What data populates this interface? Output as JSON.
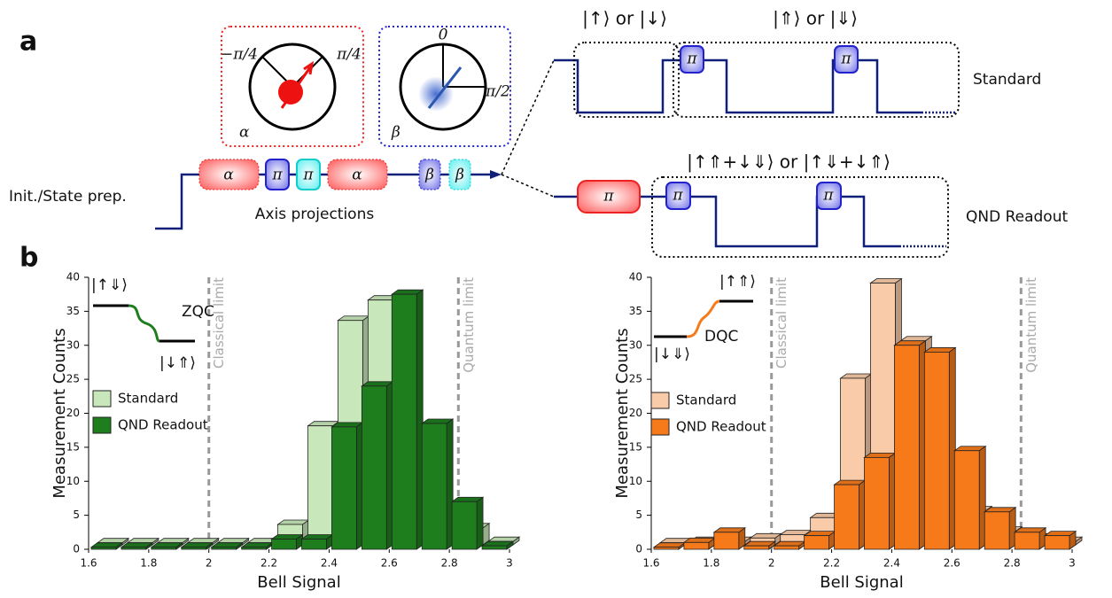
{
  "diagram": {
    "panel_a": "a",
    "panel_b": "b",
    "init": "Init./State prep.",
    "axis_projections": "Axis projections",
    "pulses": [
      "α",
      "π",
      "π",
      "α",
      "β",
      "β"
    ],
    "alpha_inset": {
      "left": "−π/4",
      "right": "π/4",
      "name": "α"
    },
    "beta_inset": {
      "top": "0",
      "right": "π/2",
      "name": "β"
    },
    "standard": {
      "label": "Standard",
      "state1": "|↑⟩ or |↓⟩",
      "state2": "|⇑⟩ or |⇓⟩",
      "pulses": [
        "π",
        "π"
      ]
    },
    "qnd": {
      "label": "QND Readout",
      "state": "|↑⇑+↓⇓⟩ or |↑⇓+↓⇑⟩",
      "pulses": [
        "π",
        "π",
        "π"
      ]
    }
  },
  "chart_data": [
    {
      "type": "histogram",
      "xlabel": "Bell Signal",
      "ylabel": "Measurement Counts",
      "bins": [
        1.6,
        1.7,
        1.8,
        1.9,
        2.0,
        2.1,
        2.2,
        2.3,
        2.4,
        2.5,
        2.6,
        2.7,
        2.8,
        2.9,
        3.0
      ],
      "series": [
        {
          "name": "Standard",
          "color": "#c8e8bb",
          "values": [
            0.3,
            0.3,
            0.3,
            0.3,
            0.3,
            0.3,
            3,
            17.5,
            33,
            36,
            16,
            5,
            2.5,
            0.5
          ]
        },
        {
          "name": "QND Readout",
          "color": "#1e7e1e",
          "values": [
            0.3,
            0.3,
            0.3,
            0.3,
            0.3,
            0.3,
            1.5,
            1.5,
            18,
            24,
            37.5,
            18.5,
            7,
            0.5
          ]
        }
      ],
      "xlim": [
        1.6,
        3
      ],
      "xticks": [
        1.6,
        1.8,
        2,
        2.2,
        2.4,
        2.6,
        2.8,
        3
      ],
      "ylim": [
        0,
        40
      ],
      "yticks": [
        0,
        5,
        10,
        15,
        20,
        25,
        30,
        35,
        40
      ],
      "vlines": [
        {
          "value": 2,
          "label": "Classical limit"
        },
        {
          "value": 2.83,
          "label": "Quantum limit"
        }
      ],
      "annotations": [
        "|↑⇓⟩",
        "ZQC",
        "|↓⇑⟩"
      ]
    },
    {
      "type": "histogram",
      "xlabel": "Bell Signal",
      "ylabel": "Measurement Counts",
      "bins": [
        1.6,
        1.7,
        1.8,
        1.9,
        2.0,
        2.1,
        2.2,
        2.3,
        2.4,
        2.5,
        2.6,
        2.7,
        2.8,
        2.9,
        3.0
      ],
      "series": [
        {
          "name": "Standard",
          "color": "#f9cba8",
          "values": [
            0.3,
            0.5,
            0.5,
            1,
            1.5,
            4,
            24.5,
            38.5,
            30,
            10,
            5,
            2,
            1,
            0.5
          ]
        },
        {
          "name": "QND Readout",
          "color": "#f77a1a",
          "values": [
            0.3,
            1,
            2.5,
            0.5,
            0.5,
            2,
            9.5,
            13.5,
            30,
            29,
            14.5,
            5.5,
            2.5,
            2
          ]
        }
      ],
      "xlim": [
        1.6,
        3
      ],
      "xticks": [
        1.6,
        1.8,
        2,
        2.2,
        2.4,
        2.6,
        2.8,
        3
      ],
      "ylim": [
        0,
        40
      ],
      "yticks": [
        0,
        5,
        10,
        15,
        20,
        25,
        30,
        35,
        40
      ],
      "vlines": [
        {
          "value": 2,
          "label": "Classical limit"
        },
        {
          "value": 2.83,
          "label": "Quantum limit"
        }
      ],
      "annotations": [
        "|↑⇑⟩",
        "DQC",
        "|↓⇓⟩"
      ]
    }
  ]
}
